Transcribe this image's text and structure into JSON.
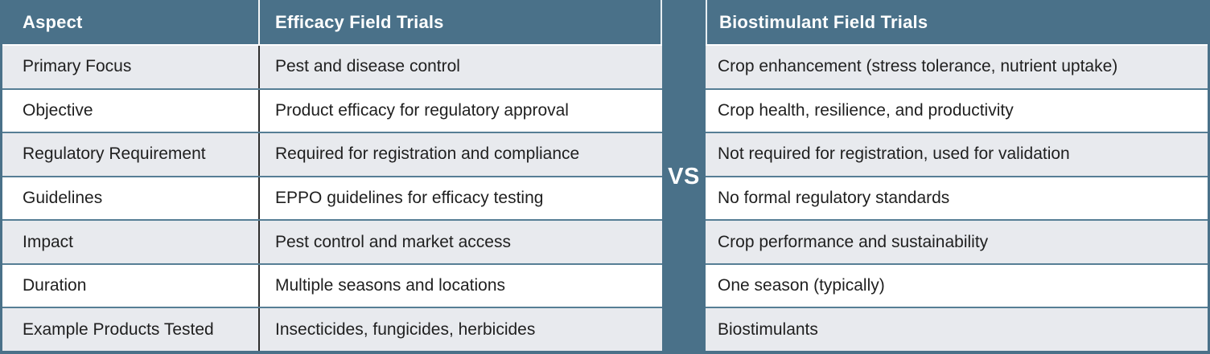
{
  "comparison": {
    "vs_label": "VS",
    "left_table": {
      "aspect_header": "Aspect",
      "header": "Efficacy Field Trials"
    },
    "right_table": {
      "header": "Biostimulant Field Trials"
    },
    "rows": [
      {
        "aspect": "Primary Focus",
        "efficacy": "Pest and disease control",
        "biostimulant": "Crop enhancement (stress tolerance, nutrient uptake)"
      },
      {
        "aspect": "Objective",
        "efficacy": "Product efficacy for regulatory approval",
        "biostimulant": "Crop health, resilience, and productivity"
      },
      {
        "aspect": "Regulatory Requirement",
        "efficacy": "Required for registration and compliance",
        "biostimulant": "Not required for registration, used for validation"
      },
      {
        "aspect": "Guidelines",
        "efficacy": "EPPO guidelines for efficacy testing",
        "biostimulant": "No formal regulatory standards"
      },
      {
        "aspect": "Impact",
        "efficacy": "Pest control and market access",
        "biostimulant": "Crop performance and sustainability"
      },
      {
        "aspect": "Duration",
        "efficacy": "Multiple seasons and locations",
        "biostimulant": "One season (typically)"
      },
      {
        "aspect": "Example Products Tested",
        "efficacy": "Insecticides, fungicides, herbicides",
        "biostimulant": "Biostimulants"
      }
    ],
    "colors": {
      "header_bg": "#4a7189",
      "divider_bg": "#4a7189",
      "row_alt_bg": "#e8eaee",
      "row_bg": "#ffffff",
      "row_separator": "#567e95",
      "column_divider": "#2e2e2e",
      "header_text": "#ffffff",
      "body_text": "#1f1f1f"
    }
  }
}
